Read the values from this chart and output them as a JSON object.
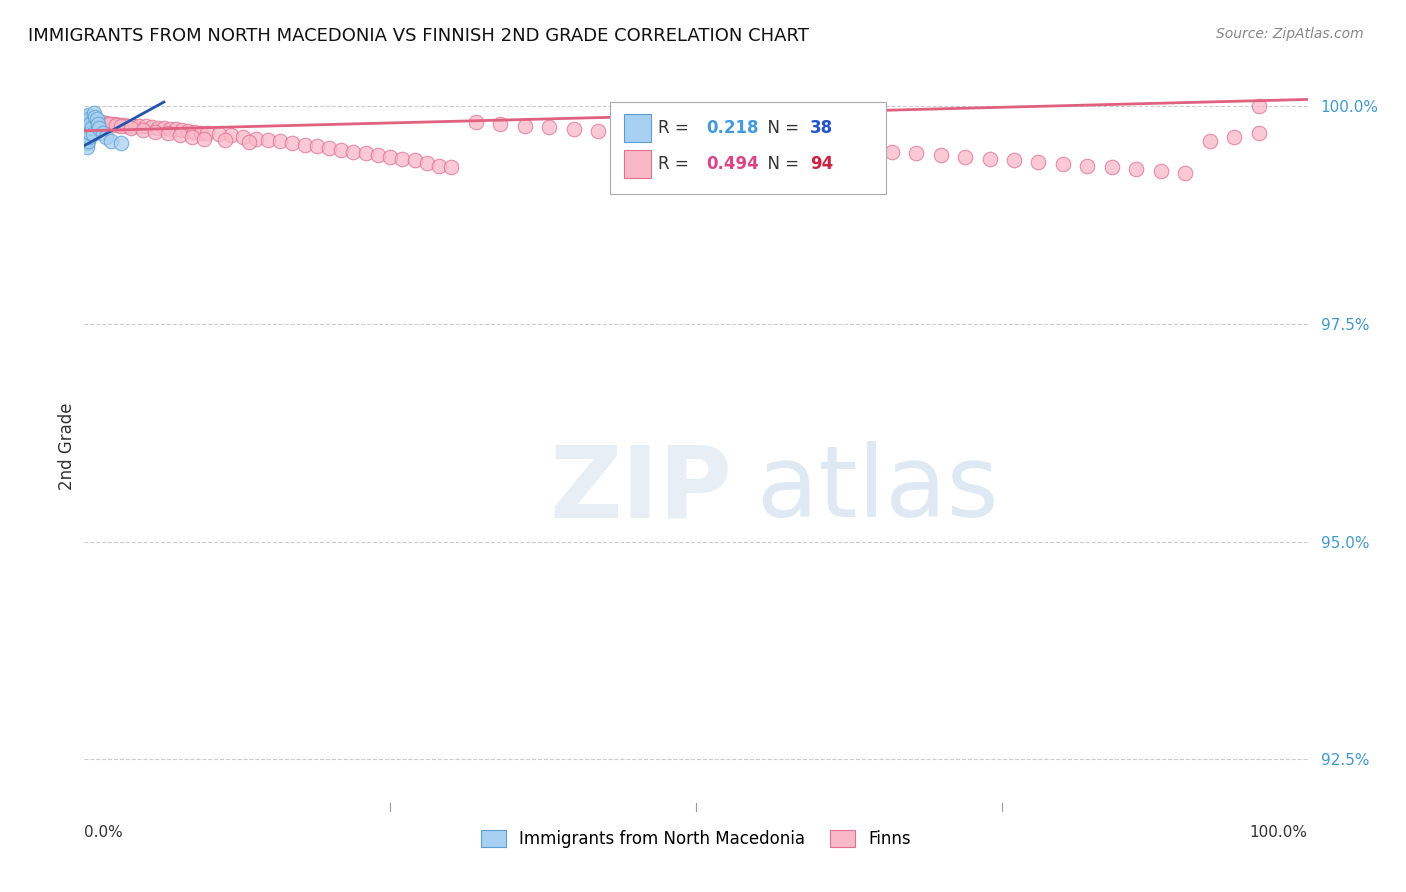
{
  "title": "IMMIGRANTS FROM NORTH MACEDONIA VS FINNISH 2ND GRADE CORRELATION CHART",
  "source": "Source: ZipAtlas.com",
  "ylabel": "2nd Grade",
  "ylabel_right_labels": [
    "100.0%",
    "97.5%",
    "95.0%",
    "92.5%"
  ],
  "ylabel_right_values": [
    1.0,
    0.975,
    0.95,
    0.925
  ],
  "legend_r1_val": "0.218",
  "legend_n1_val": "38",
  "legend_r2_val": "0.494",
  "legend_n2_val": "94",
  "blue_color": "#a8d0f0",
  "blue_edge_color": "#5a9fd4",
  "pink_color": "#f9b8c8",
  "pink_edge_color": "#e07090",
  "blue_line_color": "#2255aa",
  "pink_line_color": "#e06080",
  "r1_color": "#4499dd",
  "n1_color": "#2255cc",
  "r2_color": "#dd4488",
  "n2_color": "#cc2244",
  "legend_label_blue": "Immigrants from North Macedonia",
  "legend_label_pink": "Finns",
  "xmin": 0.0,
  "xmax": 1.0,
  "ymin": 0.919,
  "ymax": 1.003,
  "blue_scatter_x": [
    0.001,
    0.001,
    0.001,
    0.001,
    0.001,
    0.001,
    0.001,
    0.001,
    0.001,
    0.001,
    0.002,
    0.002,
    0.002,
    0.002,
    0.002,
    0.002,
    0.002,
    0.002,
    0.003,
    0.003,
    0.003,
    0.003,
    0.004,
    0.004,
    0.004,
    0.005,
    0.005,
    0.006,
    0.007,
    0.008,
    0.009,
    0.01,
    0.011,
    0.012,
    0.015,
    0.018,
    0.022,
    0.03
  ],
  "blue_scatter_y": [
    0.9985,
    0.9982,
    0.998,
    0.9978,
    0.9975,
    0.9973,
    0.997,
    0.9968,
    0.9965,
    0.996,
    0.9988,
    0.9983,
    0.9978,
    0.9973,
    0.9968,
    0.9963,
    0.9958,
    0.9953,
    0.999,
    0.998,
    0.997,
    0.996,
    0.9985,
    0.9975,
    0.9965,
    0.998,
    0.997,
    0.9975,
    0.9968,
    0.9992,
    0.9988,
    0.9985,
    0.998,
    0.9975,
    0.997,
    0.9965,
    0.996,
    0.9958
  ],
  "pink_scatter_x": [
    0.002,
    0.005,
    0.008,
    0.012,
    0.015,
    0.018,
    0.022,
    0.025,
    0.028,
    0.032,
    0.035,
    0.04,
    0.045,
    0.05,
    0.055,
    0.06,
    0.065,
    0.07,
    0.075,
    0.08,
    0.085,
    0.09,
    0.095,
    0.1,
    0.11,
    0.12,
    0.13,
    0.14,
    0.15,
    0.16,
    0.17,
    0.18,
    0.19,
    0.2,
    0.21,
    0.22,
    0.23,
    0.24,
    0.25,
    0.26,
    0.27,
    0.28,
    0.29,
    0.3,
    0.32,
    0.34,
    0.36,
    0.38,
    0.4,
    0.42,
    0.44,
    0.46,
    0.48,
    0.5,
    0.52,
    0.54,
    0.56,
    0.58,
    0.6,
    0.62,
    0.64,
    0.66,
    0.68,
    0.7,
    0.72,
    0.74,
    0.76,
    0.78,
    0.8,
    0.82,
    0.84,
    0.86,
    0.88,
    0.9,
    0.92,
    0.94,
    0.96,
    0.003,
    0.007,
    0.011,
    0.016,
    0.02,
    0.026,
    0.03,
    0.038,
    0.048,
    0.058,
    0.068,
    0.078,
    0.088,
    0.098,
    0.115,
    0.135,
    0.96
  ],
  "pink_scatter_y": [
    0.9985,
    0.9983,
    0.9982,
    0.9982,
    0.9981,
    0.9981,
    0.998,
    0.998,
    0.9979,
    0.9979,
    0.9978,
    0.9978,
    0.9977,
    0.9977,
    0.9976,
    0.9975,
    0.9975,
    0.9974,
    0.9974,
    0.9973,
    0.9972,
    0.9971,
    0.997,
    0.9969,
    0.9968,
    0.9967,
    0.9965,
    0.9963,
    0.9961,
    0.996,
    0.9958,
    0.9956,
    0.9954,
    0.9952,
    0.995,
    0.9948,
    0.9946,
    0.9944,
    0.9942,
    0.994,
    0.9938,
    0.9935,
    0.9932,
    0.993,
    0.9982,
    0.998,
    0.9978,
    0.9976,
    0.9974,
    0.9972,
    0.997,
    0.9968,
    0.9966,
    0.9964,
    0.9962,
    0.996,
    0.9958,
    0.9956,
    0.9954,
    0.9952,
    0.995,
    0.9948,
    0.9946,
    0.9944,
    0.9942,
    0.994,
    0.9938,
    0.9936,
    0.9934,
    0.9932,
    0.993,
    0.9928,
    0.9926,
    0.9924,
    0.996,
    0.9965,
    0.997,
    0.9984,
    0.9983,
    0.9982,
    0.9981,
    0.998,
    0.9979,
    0.9977,
    0.9975,
    0.9973,
    0.9971,
    0.9969,
    0.9967,
    0.9965,
    0.9963,
    0.9961,
    0.9959,
    1.0
  ]
}
